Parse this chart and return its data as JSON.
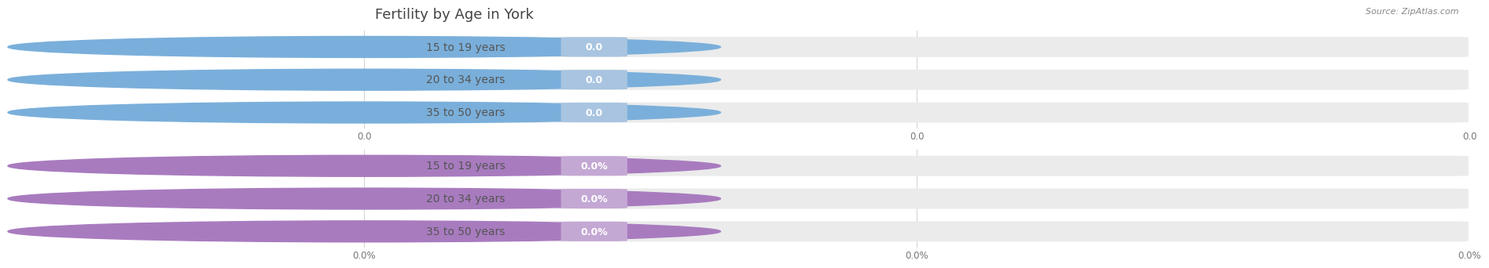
{
  "title": "Fertility by Age in York",
  "source": "Source: ZipAtlas.com",
  "top_section": {
    "categories": [
      "15 to 19 years",
      "20 to 34 years",
      "35 to 50 years"
    ],
    "values": [
      0.0,
      0.0,
      0.0
    ],
    "bar_fg_color": "#a8c4e0",
    "bar_bg_color": "#ebebeb",
    "label_color": "#555555",
    "value_text_color": "#ffffff",
    "circle_color": "#7aafdb",
    "tick_labels": [
      "0.0",
      "0.0",
      "0.0"
    ],
    "is_percent": false
  },
  "bottom_section": {
    "categories": [
      "15 to 19 years",
      "20 to 34 years",
      "35 to 50 years"
    ],
    "values": [
      0.0,
      0.0,
      0.0
    ],
    "bar_fg_color": "#c4a8d4",
    "bar_bg_color": "#ebebeb",
    "label_color": "#555555",
    "value_text_color": "#ffffff",
    "circle_color": "#a87bbf",
    "tick_labels": [
      "0.0%",
      "0.0%",
      "0.0%"
    ],
    "is_percent": true
  },
  "bg_color": "#ffffff",
  "bar_height": 0.62,
  "grid_color": "#d0d0d0",
  "title_fontsize": 13,
  "label_fontsize": 10,
  "value_fontsize": 9,
  "tick_fontsize": 8.5,
  "source_fontsize": 8
}
